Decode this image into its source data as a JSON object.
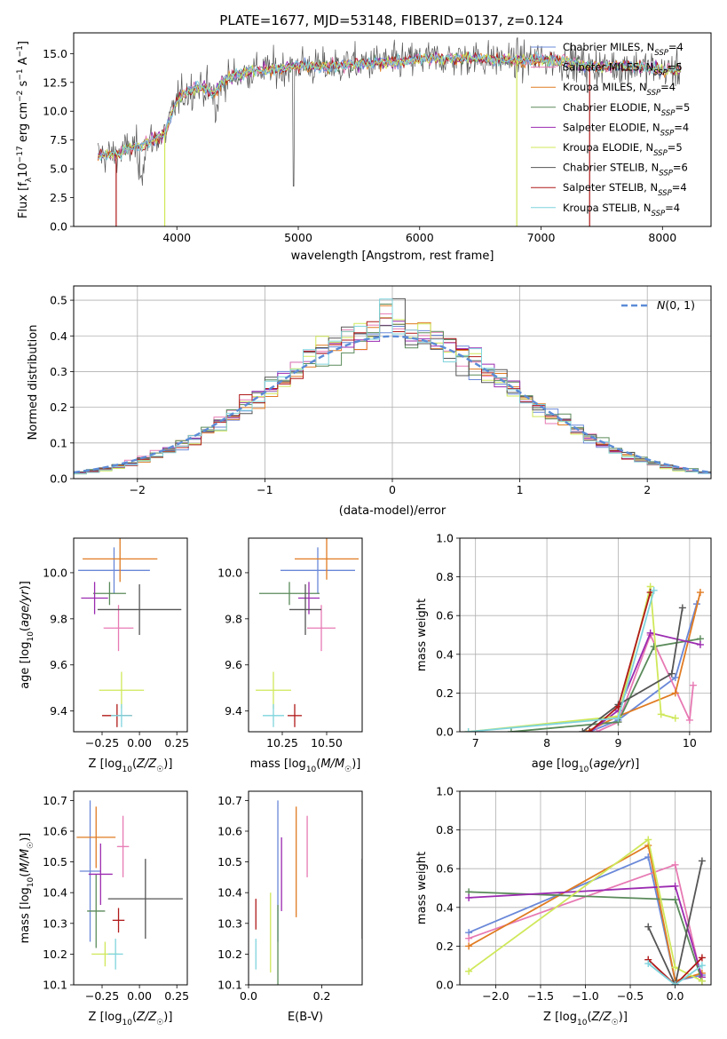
{
  "figure_title": "PLATE=1677, MJD=53148, FIBERID=0137, z=0.124",
  "series_legend": [
    {
      "label": "Chabrier MILES, N",
      "sub": "SSP",
      "tail": "=4",
      "color": "#6a88d8"
    },
    {
      "label": "Salpeter MILES, N",
      "sub": "SSP",
      "tail": "=5",
      "color": "#e77ab3"
    },
    {
      "label": "Kroupa MILES, N",
      "sub": "SSP",
      "tail": "=4",
      "color": "#e07b22"
    },
    {
      "label": "Chabrier ELODIE, N",
      "sub": "SSP",
      "tail": "=5",
      "color": "#5a8a5a"
    },
    {
      "label": "Salpeter ELODIE, N",
      "sub": "SSP",
      "tail": "=4",
      "color": "#9b2ab0"
    },
    {
      "label": "Kroupa ELODIE, N",
      "sub": "SSP",
      "tail": "=5",
      "color": "#cfe85a"
    },
    {
      "label": "Chabrier STELIB, N",
      "sub": "SSP",
      "tail": "=6",
      "color": "#555555"
    },
    {
      "label": "Salpeter STELIB, N",
      "sub": "SSP",
      "tail": "=4",
      "color": "#b01a1a"
    },
    {
      "label": "Kroupa STELIB, N",
      "sub": "SSP",
      "tail": "=4",
      "color": "#7fd4dd"
    }
  ],
  "chart_data": [
    {
      "id": "spectrum",
      "type": "line",
      "xlabel": "wavelength [Angstrom, rest frame]",
      "ylabel": "Flux [f_λ 10^-17 erg cm^-2 s^-1 A^-1]",
      "xlim": [
        3150,
        8400
      ],
      "ylim": [
        0,
        16.8
      ],
      "xticks": [
        4000,
        5000,
        6000,
        7000,
        8000
      ],
      "yticks": [
        0.0,
        2.5,
        5.0,
        7.5,
        10.0,
        12.5,
        15.0
      ],
      "grid": false,
      "legend_position": "top-right",
      "continuum": {
        "x": [
          3350,
          3500,
          3600,
          3700,
          3800,
          3900,
          4000,
          4100,
          4200,
          4300,
          4400,
          4600,
          4800,
          5000,
          5200,
          5400,
          5600,
          5800,
          6000,
          6200,
          6400,
          6600,
          6800,
          7000,
          7200,
          7400,
          7600,
          7800,
          8000,
          8200
        ],
        "y": [
          6.2,
          6.2,
          6.8,
          7.0,
          7.5,
          8.0,
          11.0,
          11.8,
          12.2,
          11.5,
          12.8,
          13.5,
          13.6,
          14.0,
          13.8,
          14.0,
          14.2,
          14.3,
          14.5,
          14.6,
          14.6,
          14.5,
          14.4,
          14.5,
          14.3,
          13.9,
          13.9,
          13.9,
          13.6,
          13.5
        ]
      },
      "dropouts": [
        {
          "series": 7,
          "x": 3500
        },
        {
          "series": 5,
          "x": 3900
        },
        {
          "series": 5,
          "x": 6800
        },
        {
          "series": 7,
          "x": 7400
        }
      ]
    },
    {
      "id": "residual_histogram",
      "type": "histogram",
      "xlabel": "(data-model)/error",
      "ylabel": "Normed distribution",
      "xlim": [
        -2.5,
        2.5
      ],
      "ylim": [
        0,
        0.54
      ],
      "xticks": [
        -2,
        -1,
        0,
        1,
        2
      ],
      "yticks": [
        0.0,
        0.1,
        0.2,
        0.3,
        0.4,
        0.5
      ],
      "grid": true,
      "bin_width": 0.1,
      "reference_curve": {
        "label": "N(0,1)",
        "mean": 0,
        "sigma": 1,
        "color": "#5b8bd6",
        "style": "dashed"
      },
      "legend_position": "top-right"
    },
    {
      "id": "age_vs_metallicity",
      "type": "errorbar",
      "xlabel": "Z [log10(Z/Z☉)]",
      "ylabel": "age [log10(age/yr)]",
      "xlim": [
        -0.44,
        0.32
      ],
      "ylim": [
        9.31,
        10.15
      ],
      "xticks": [
        -0.25,
        0.0,
        0.25
      ],
      "yticks": [
        9.4,
        9.6,
        9.8,
        10.0
      ],
      "points": [
        {
          "series": 0,
          "x": -0.17,
          "xerr": 0.24,
          "y": 10.01,
          "yerr": 0.1
        },
        {
          "series": 1,
          "x": -0.14,
          "xerr": 0.1,
          "y": 9.76,
          "yerr": 0.1
        },
        {
          "series": 2,
          "x": -0.13,
          "xerr": 0.25,
          "y": 10.06,
          "yerr": 0.1
        },
        {
          "series": 3,
          "x": -0.2,
          "xerr": 0.11,
          "y": 9.91,
          "yerr": 0.05
        },
        {
          "series": 4,
          "x": -0.3,
          "xerr": 0.09,
          "y": 9.89,
          "yerr": 0.07
        },
        {
          "series": 5,
          "x": -0.12,
          "xerr": 0.15,
          "y": 9.49,
          "yerr": 0.08
        },
        {
          "series": 6,
          "x": 0.0,
          "xerr": 0.28,
          "y": 9.84,
          "yerr": 0.11
        },
        {
          "series": 7,
          "x": -0.15,
          "xerr": 0.1,
          "y": 9.38,
          "yerr": 0.05
        },
        {
          "series": 8,
          "x": -0.12,
          "xerr": 0.07,
          "y": 9.38,
          "yerr": 0.05
        }
      ]
    },
    {
      "id": "age_vs_mass",
      "type": "errorbar",
      "xlabel": "mass [log10(M/M☉)]",
      "xlim": [
        10.06,
        10.7
      ],
      "ylim": [
        9.31,
        10.15
      ],
      "xticks": [
        10.25,
        10.5
      ],
      "yticks": [
        9.4,
        9.6,
        9.8,
        10.0
      ],
      "points": [
        {
          "series": 0,
          "x": 10.45,
          "xerr": 0.21,
          "y": 10.01,
          "yerr": 0.1
        },
        {
          "series": 1,
          "x": 10.47,
          "xerr": 0.08,
          "y": 9.76,
          "yerr": 0.1
        },
        {
          "series": 2,
          "x": 10.5,
          "xerr": 0.18,
          "y": 10.06,
          "yerr": 0.09
        },
        {
          "series": 3,
          "x": 10.29,
          "xerr": 0.17,
          "y": 9.91,
          "yerr": 0.05
        },
        {
          "series": 4,
          "x": 10.4,
          "xerr": 0.06,
          "y": 9.89,
          "yerr": 0.07
        },
        {
          "series": 5,
          "x": 10.2,
          "xerr": 0.1,
          "y": 9.49,
          "yerr": 0.08
        },
        {
          "series": 6,
          "x": 10.38,
          "xerr": 0.09,
          "y": 9.84,
          "yerr": 0.11
        },
        {
          "series": 7,
          "x": 10.32,
          "xerr": 0.04,
          "y": 9.38,
          "yerr": 0.05
        },
        {
          "series": 8,
          "x": 10.2,
          "xerr": 0.06,
          "y": 9.38,
          "yerr": 0.05
        }
      ]
    },
    {
      "id": "mass_weight_vs_age",
      "type": "line",
      "xlabel": "age [log10(age/yr)]",
      "ylabel": "mass weight",
      "xlim": [
        6.78,
        10.3
      ],
      "ylim": [
        0,
        1.0
      ],
      "xticks": [
        7,
        8,
        9,
        10
      ],
      "yticks": [
        0.0,
        0.2,
        0.4,
        0.6,
        0.8,
        1.0
      ],
      "grid": true,
      "series": [
        {
          "series": 0,
          "x": [
            8.6,
            9.0,
            9.8,
            10.1
          ],
          "y": [
            0.0,
            0.06,
            0.28,
            0.66
          ]
        },
        {
          "series": 1,
          "x": [
            8.7,
            9.0,
            9.45,
            10.0,
            10.05
          ],
          "y": [
            0.0,
            0.05,
            0.5,
            0.06,
            0.24
          ]
        },
        {
          "series": 2,
          "x": [
            8.55,
            9.0,
            9.8,
            10.15
          ],
          "y": [
            0.0,
            0.08,
            0.2,
            0.72
          ]
        },
        {
          "series": 3,
          "x": [
            7.5,
            9.0,
            9.5,
            10.15
          ],
          "y": [
            0.0,
            0.05,
            0.44,
            0.48
          ]
        },
        {
          "series": 4,
          "x": [
            8.6,
            9.0,
            9.45,
            10.15
          ],
          "y": [
            0.0,
            0.11,
            0.51,
            0.45
          ]
        },
        {
          "series": 5,
          "x": [
            6.9,
            9.0,
            9.45,
            9.6,
            9.8
          ],
          "y": [
            0.0,
            0.08,
            0.75,
            0.09,
            0.07
          ]
        },
        {
          "series": 6,
          "x": [
            8.5,
            9.0,
            9.75,
            9.9
          ],
          "y": [
            0.0,
            0.14,
            0.3,
            0.64
          ]
        },
        {
          "series": 7,
          "x": [
            8.6,
            9.0,
            9.45
          ],
          "y": [
            0.0,
            0.13,
            0.72
          ]
        },
        {
          "series": 8,
          "x": [
            6.9,
            9.0,
            9.5
          ],
          "y": [
            0.0,
            0.07,
            0.73
          ]
        }
      ]
    },
    {
      "id": "mass_vs_metallicity",
      "type": "errorbar",
      "xlabel": "Z [log10(Z/Z☉)]",
      "ylabel": "mass [log10(M/M☉)]",
      "xlim": [
        -0.44,
        0.32
      ],
      "ylim": [
        10.1,
        10.73
      ],
      "xticks": [
        -0.25,
        0.0,
        0.25
      ],
      "yticks": [
        10.1,
        10.2,
        10.3,
        10.4,
        10.5,
        10.6,
        10.7
      ],
      "points": [
        {
          "series": 0,
          "x": -0.33,
          "xerr": 0.07,
          "y": 10.47,
          "yerr": 0.23
        },
        {
          "series": 1,
          "x": -0.11,
          "xerr": 0.04,
          "y": 10.55,
          "yerr": 0.1
        },
        {
          "series": 2,
          "x": -0.29,
          "xerr": 0.13,
          "y": 10.58,
          "yerr": 0.1
        },
        {
          "series": 3,
          "x": -0.29,
          "xerr": 0.06,
          "y": 10.34,
          "yerr": 0.12
        },
        {
          "series": 4,
          "x": -0.26,
          "xerr": 0.08,
          "y": 10.46,
          "yerr": 0.1
        },
        {
          "series": 5,
          "x": -0.23,
          "xerr": 0.09,
          "y": 10.2,
          "yerr": 0.04
        },
        {
          "series": 6,
          "x": 0.04,
          "xerr": 0.25,
          "y": 10.38,
          "yerr": 0.13
        },
        {
          "series": 7,
          "x": -0.14,
          "xerr": 0.04,
          "y": 10.31,
          "yerr": 0.04
        },
        {
          "series": 8,
          "x": -0.16,
          "xerr": 0.05,
          "y": 10.2,
          "yerr": 0.05
        }
      ]
    },
    {
      "id": "mass_vs_extinction",
      "type": "errorbar",
      "xlabel": "E(B-V)",
      "xlim": [
        0.0,
        0.31
      ],
      "ylim": [
        10.1,
        10.73
      ],
      "xticks": [
        0.0,
        0.2
      ],
      "yticks": [
        10.1,
        10.2,
        10.3,
        10.4,
        10.5,
        10.6,
        10.7
      ],
      "points": [
        {
          "series": 0,
          "x": 0.08,
          "xerr": 0,
          "y": 10.47,
          "yerr": 0.23
        },
        {
          "series": 1,
          "x": 0.16,
          "xerr": 0,
          "y": 10.55,
          "yerr": 0.1
        },
        {
          "series": 2,
          "x": 0.13,
          "xerr": 0,
          "y": 10.5,
          "yerr": 0.18
        },
        {
          "series": 3,
          "x": 0.08,
          "xerr": 0,
          "y": 10.23,
          "yerr": 0.13
        },
        {
          "series": 4,
          "x": 0.09,
          "xerr": 0,
          "y": 10.46,
          "yerr": 0.12
        },
        {
          "series": 5,
          "x": 0.06,
          "xerr": 0,
          "y": 10.27,
          "yerr": 0.13
        },
        {
          "series": 6,
          "x": 0.31,
          "xerr": 0,
          "y": 10.38,
          "yerr": 0.13
        },
        {
          "series": 7,
          "x": 0.02,
          "xerr": 0,
          "y": 10.33,
          "yerr": 0.05
        },
        {
          "series": 8,
          "x": 0.02,
          "xerr": 0,
          "y": 10.2,
          "yerr": 0.05
        }
      ]
    },
    {
      "id": "mass_weight_vs_metallicity",
      "type": "line",
      "xlabel": "Z [log10(Z/Z☉)]",
      "ylabel": "mass weight",
      "xlim": [
        -2.4,
        0.4
      ],
      "ylim": [
        0,
        1.0
      ],
      "xticks": [
        -2.0,
        -1.5,
        -1.0,
        -0.5,
        0.0
      ],
      "yticks": [
        0.0,
        0.2,
        0.4,
        0.6,
        0.8,
        1.0
      ],
      "grid": true,
      "series": [
        {
          "series": 0,
          "x": [
            -2.3,
            -0.3,
            0.0,
            0.3
          ],
          "y": [
            0.27,
            0.66,
            0.02,
            0.05
          ]
        },
        {
          "series": 1,
          "x": [
            -2.3,
            0.0,
            0.3
          ],
          "y": [
            0.24,
            0.62,
            0.02
          ]
        },
        {
          "series": 2,
          "x": [
            -2.3,
            -0.3,
            0.0,
            0.3
          ],
          "y": [
            0.2,
            0.72,
            0.02,
            0.06
          ]
        },
        {
          "series": 3,
          "x": [
            -2.3,
            0.0,
            0.3
          ],
          "y": [
            0.48,
            0.44,
            0.02
          ]
        },
        {
          "series": 4,
          "x": [
            -2.3,
            0.0,
            0.3
          ],
          "y": [
            0.45,
            0.51,
            0.04
          ]
        },
        {
          "series": 5,
          "x": [
            -2.3,
            -0.3,
            0.0,
            0.3
          ],
          "y": [
            0.07,
            0.75,
            0.09,
            0.02
          ]
        },
        {
          "series": 6,
          "x": [
            -0.3,
            0.0,
            0.3
          ],
          "y": [
            0.3,
            0.0,
            0.64
          ]
        },
        {
          "series": 7,
          "x": [
            -0.3,
            0.0,
            0.3
          ],
          "y": [
            0.13,
            0.0,
            0.14
          ]
        },
        {
          "series": 8,
          "x": [
            -0.3,
            0.0,
            0.3
          ],
          "y": [
            0.11,
            0.0,
            0.1
          ]
        }
      ]
    }
  ]
}
